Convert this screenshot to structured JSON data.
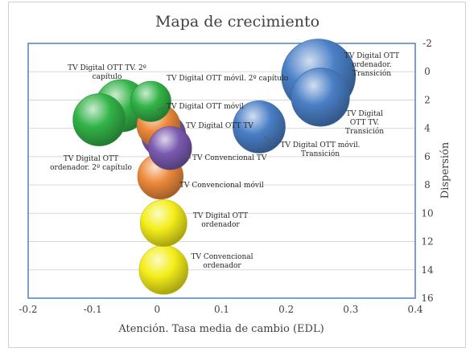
{
  "chart_data": {
    "type": "bubble",
    "title": "Mapa de crecimiento",
    "xlabel": "Atención. Tasa media de cambio (EDL)",
    "ylabel": "Dispersión",
    "xlim": [
      -0.2,
      0.4
    ],
    "ylim": [
      -2,
      16
    ],
    "y_axis_reversed": true,
    "y_axis_position": "right",
    "x_ticks": [
      "-0.2",
      "-0.1",
      "0",
      "0.1",
      "0.2",
      "0.3",
      "0.4"
    ],
    "y_ticks": [
      "-2",
      "0",
      "2",
      "4",
      "6",
      "8",
      "10",
      "12",
      "14",
      "16"
    ],
    "grid": "horizontal",
    "legend": "none",
    "colors": {
      "blue": "#4a7fc6",
      "green": "#33b348",
      "orange": "#ee8a3c",
      "purple": "#7a5ab0",
      "yellow": "#f4ee1a",
      "axis_box": "#4f81bd",
      "grid": "#d9d9d9"
    },
    "points": [
      {
        "label": "TV Digital OTT ordenador. Transición",
        "x": 0.25,
        "y": 0.3,
        "size": 1.0,
        "color": "blue"
      },
      {
        "label": "TV Digital OTT TV. Transición",
        "x": 0.253,
        "y": 1.8,
        "size": 0.62,
        "color": "blue"
      },
      {
        "label": "TV Digital OTT móvil. Transición",
        "x": 0.158,
        "y": 3.9,
        "size": 0.5,
        "color": "blue"
      },
      {
        "label": "TV Digital OTT TV. 2º capítulo",
        "x": -0.055,
        "y": 2.4,
        "size": 0.5,
        "color": "green"
      },
      {
        "label": "TV Digital OTT ordenador. 2º capítulo",
        "x": -0.09,
        "y": 3.4,
        "size": 0.5,
        "color": "green"
      },
      {
        "label": "TV Digital OTT móvil. 2º capítulo",
        "x": -0.01,
        "y": 2.1,
        "size": 0.3,
        "color": "green"
      },
      {
        "label": "TV Digital OTT móvil",
        "x": 0.002,
        "y": 3.8,
        "size": 0.34,
        "color": "orange"
      },
      {
        "label": "TV Convencional móvil",
        "x": 0.005,
        "y": 7.4,
        "size": 0.38,
        "color": "orange"
      },
      {
        "label": "TV Digital OTT TV",
        "x": 0.01,
        "y": 4.5,
        "size": 0.36,
        "color": "purple"
      },
      {
        "label": "TV Convencional TV",
        "x": 0.02,
        "y": 5.4,
        "size": 0.34,
        "color": "purple"
      },
      {
        "label": "TV Digital OTT ordenador",
        "x": 0.01,
        "y": 10.7,
        "size": 0.4,
        "color": "yellow"
      },
      {
        "label": "TV Convencional ordenador",
        "x": 0.01,
        "y": 14.0,
        "size": 0.44,
        "color": "yellow"
      }
    ]
  },
  "data_labels": [
    {
      "lines": [
        "TV Digital OTT",
        "ordenador.",
        "Transición"
      ]
    },
    {
      "lines": [
        "TV Digital",
        "OTT TV.",
        "Transición"
      ]
    },
    {
      "lines": [
        "TV Digital OTT móvil.",
        "Transición"
      ]
    },
    {
      "lines": [
        "TV Digital OTT TV. 2º",
        "capítulo"
      ]
    },
    {
      "lines": [
        "TV Digital OTT",
        "ordenador. 2º capítulo"
      ]
    },
    {
      "lines": [
        "TV Digital OTT móvil. 2º capítulo"
      ]
    },
    {
      "lines": [
        "TV Digital OTT móvil"
      ]
    },
    {
      "lines": [
        "TV Convencional móvil"
      ]
    },
    {
      "lines": [
        "TV Digital OTT TV"
      ]
    },
    {
      "lines": [
        "TV Convencional TV"
      ]
    },
    {
      "lines": [
        "TV Digital OTT",
        "ordenador"
      ]
    },
    {
      "lines": [
        "TV Convencional",
        "ordenador"
      ]
    }
  ]
}
